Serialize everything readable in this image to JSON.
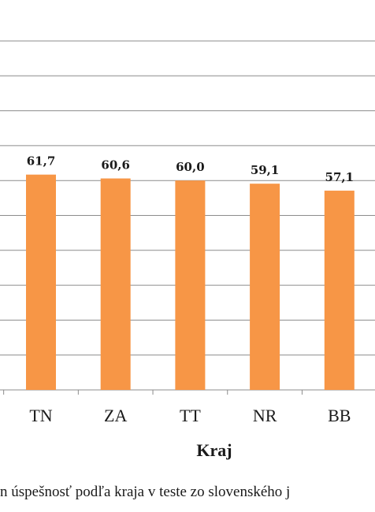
{
  "chart_data": {
    "type": "bar",
    "categories": [
      "TN",
      "ZA",
      "TT",
      "NR",
      "BB"
    ],
    "values": [
      61.7,
      60.6,
      60.0,
      59.1,
      57.1
    ],
    "value_labels": [
      "61,7",
      "60,6",
      "60,0",
      "59,1",
      "57,1"
    ],
    "xlabel": "Kraj",
    "ylim": [
      0,
      100
    ],
    "grid": true,
    "bar_color": "#F79646",
    "grid_color": "#8c8c8c"
  },
  "caption": "n úspešnosť podľa kraja v teste zo slovenského j"
}
